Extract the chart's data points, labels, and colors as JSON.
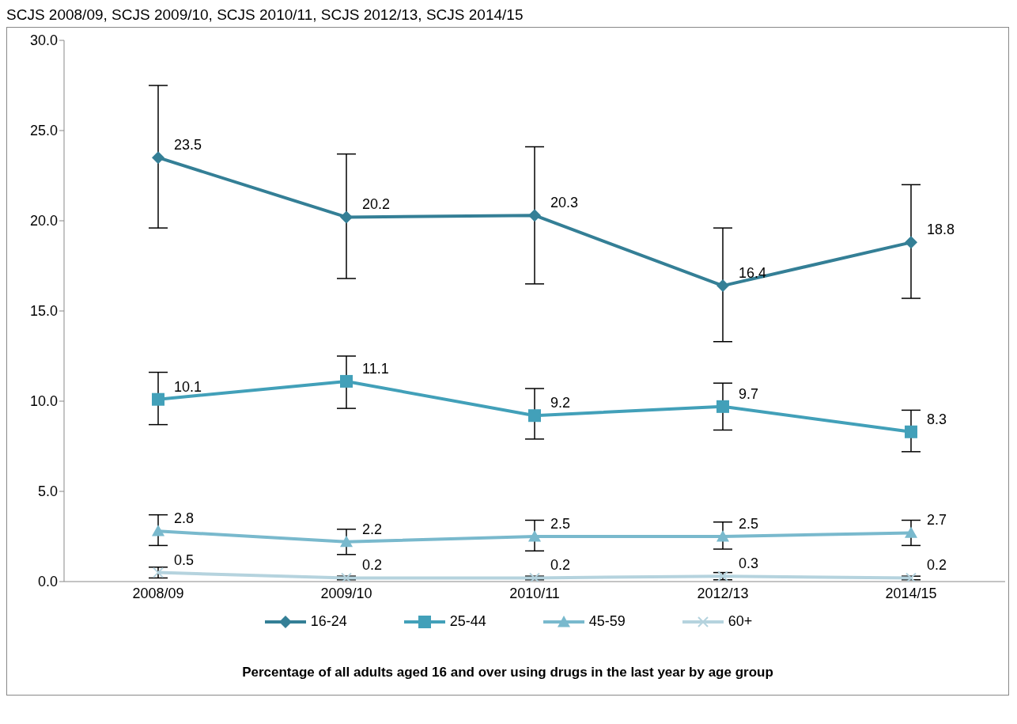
{
  "chart_data": {
    "type": "line",
    "subtitle": "SCJS 2008/09, SCJS 2009/10, SCJS 2010/11, SCJS 2012/13, SCJS 2014/15",
    "title": "Percentage of all adults aged 16 and over using drugs in the last year by age group",
    "categories": [
      "2008/09",
      "2009/10",
      "2010/11",
      "2012/13",
      "2014/15"
    ],
    "series": [
      {
        "name": "16-24",
        "color": "#347f96",
        "marker": "diamond",
        "values": [
          23.5,
          20.2,
          20.3,
          16.4,
          18.8
        ],
        "errors": [
          [
            19.6,
            27.5
          ],
          [
            16.8,
            23.7
          ],
          [
            16.5,
            24.1
          ],
          [
            13.3,
            19.6
          ],
          [
            15.7,
            22.0
          ]
        ]
      },
      {
        "name": "25-44",
        "color": "#42a0b9",
        "marker": "square",
        "values": [
          10.1,
          11.1,
          9.2,
          9.7,
          8.3
        ],
        "errors": [
          [
            8.7,
            11.6
          ],
          [
            9.6,
            12.5
          ],
          [
            7.9,
            10.7
          ],
          [
            8.4,
            11.0
          ],
          [
            7.2,
            9.5
          ]
        ]
      },
      {
        "name": "45-59",
        "color": "#79b9cd",
        "marker": "triangle",
        "values": [
          2.8,
          2.2,
          2.5,
          2.5,
          2.7
        ],
        "errors": [
          [
            2.0,
            3.7
          ],
          [
            1.5,
            2.9
          ],
          [
            1.7,
            3.4
          ],
          [
            1.8,
            3.3
          ],
          [
            2.0,
            3.4
          ]
        ]
      },
      {
        "name": "60+",
        "color": "#b5d3de",
        "marker": "cross",
        "values": [
          0.5,
          0.2,
          0.2,
          0.3,
          0.2
        ],
        "errors": [
          [
            0.2,
            0.8
          ],
          [
            0.1,
            0.3
          ],
          [
            0.1,
            0.3
          ],
          [
            0.1,
            0.5
          ],
          [
            0.1,
            0.3
          ]
        ]
      }
    ],
    "ylim": [
      0,
      30
    ],
    "yticks": [
      {
        "value": 0,
        "label": "0.0"
      },
      {
        "value": 5,
        "label": "5.0"
      },
      {
        "value": 10,
        "label": "10.0"
      },
      {
        "value": 15,
        "label": "15.0"
      },
      {
        "value": 20,
        "label": "20.0"
      },
      {
        "value": 25,
        "label": "25.0"
      },
      {
        "value": 30,
        "label": "30.0"
      }
    ],
    "grid": false,
    "legend": "bottom",
    "data_labels": true,
    "line_style": "solid"
  }
}
